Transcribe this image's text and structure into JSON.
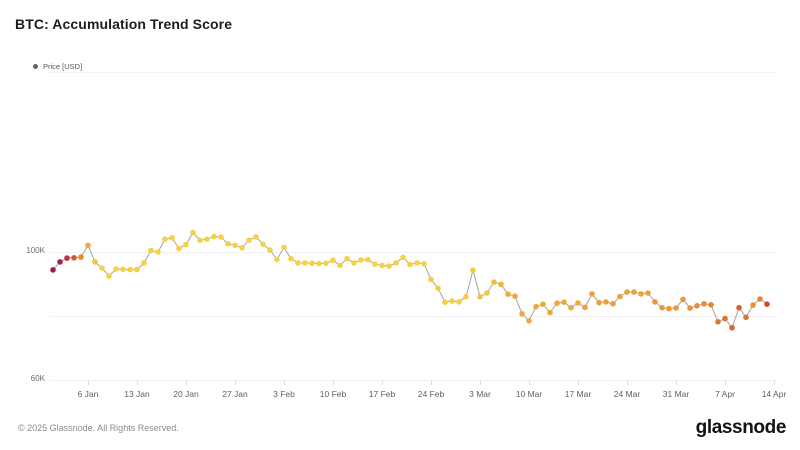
{
  "header": {
    "title": "BTC: Accumulation Trend Score"
  },
  "footer": {
    "copyright": "© 2025 Glassnode. All Rights Reserved.",
    "brand": "glassnode"
  },
  "chart_data": {
    "type": "line",
    "title": "BTC: Accumulation Trend Score",
    "legend_label": "Price [USD]",
    "legend_position": "top-left",
    "grid": "horizontal-only",
    "line_color": "#A3A3AA",
    "gridline_color": "#f1f1f4",
    "tick_color": "#dcdce0",
    "ylim": [
      60000,
      157000
    ],
    "y_axis": {
      "labels": [
        {
          "text": "100K",
          "value": 100000
        },
        {
          "text": "60K",
          "value": 60000
        }
      ],
      "gridline_values": [
        100000,
        80000,
        60000
      ]
    },
    "x_axis": {
      "ticks": [
        {
          "label": "6 Jan",
          "day": 5
        },
        {
          "label": "13 Jan",
          "day": 12
        },
        {
          "label": "20 Jan",
          "day": 19
        },
        {
          "label": "27 Jan",
          "day": 26
        },
        {
          "label": "3 Feb",
          "day": 33
        },
        {
          "label": "10 Feb",
          "day": 40
        },
        {
          "label": "17 Feb",
          "day": 47
        },
        {
          "label": "24 Feb",
          "day": 54
        },
        {
          "label": "3 Mar",
          "day": 61
        },
        {
          "label": "10 Mar",
          "day": 68
        },
        {
          "label": "17 Mar",
          "day": 75
        },
        {
          "label": "24 Mar",
          "day": 82
        },
        {
          "label": "31 Mar",
          "day": 89
        },
        {
          "label": "7 Apr",
          "day": 96
        },
        {
          "label": "14 Apr",
          "day": 103
        }
      ]
    },
    "series": [
      {
        "name": "Price [USD]",
        "color_scale": "accumulation-trend-score (dark red = high, yellow = low)",
        "points": [
          {
            "d": "1 Jan",
            "v": 94400,
            "c": "#9B1C47"
          },
          {
            "d": "2 Jan",
            "v": 96900,
            "c": "#A42348"
          },
          {
            "d": "3 Jan",
            "v": 98100,
            "c": "#C03246"
          },
          {
            "d": "4 Jan",
            "v": 98200,
            "c": "#DA5530"
          },
          {
            "d": "5 Jan",
            "v": 98400,
            "c": "#EC8834"
          },
          {
            "d": "6 Jan",
            "v": 102100,
            "c": "#F2A83C"
          },
          {
            "d": "7 Jan",
            "v": 96900,
            "c": "#F4C440"
          },
          {
            "d": "8 Jan",
            "v": 95000,
            "c": "#F5D143"
          },
          {
            "d": "9 Jan",
            "v": 92500,
            "c": "#F5D143"
          },
          {
            "d": "10 Jan",
            "v": 94700,
            "c": "#F5D143"
          },
          {
            "d": "11 Jan",
            "v": 94600,
            "c": "#F5D143"
          },
          {
            "d": "12 Jan",
            "v": 94500,
            "c": "#F5D143"
          },
          {
            "d": "13 Jan",
            "v": 94500,
            "c": "#F5D143"
          },
          {
            "d": "14 Jan",
            "v": 96600,
            "c": "#F5D143"
          },
          {
            "d": "15 Jan",
            "v": 100500,
            "c": "#F5D143"
          },
          {
            "d": "16 Jan",
            "v": 100000,
            "c": "#F5D143"
          },
          {
            "d": "17 Jan",
            "v": 104000,
            "c": "#F5D143"
          },
          {
            "d": "18 Jan",
            "v": 104400,
            "c": "#F5D143"
          },
          {
            "d": "19 Jan",
            "v": 101100,
            "c": "#F5D143"
          },
          {
            "d": "20 Jan",
            "v": 102300,
            "c": "#F5D143"
          },
          {
            "d": "21 Jan",
            "v": 106100,
            "c": "#F5D143"
          },
          {
            "d": "22 Jan",
            "v": 103700,
            "c": "#F5D143"
          },
          {
            "d": "23 Jan",
            "v": 104000,
            "c": "#F5D143"
          },
          {
            "d": "24 Jan",
            "v": 104800,
            "c": "#F5D143"
          },
          {
            "d": "25 Jan",
            "v": 104700,
            "c": "#F5D143"
          },
          {
            "d": "26 Jan",
            "v": 102600,
            "c": "#F5D143"
          },
          {
            "d": "27 Jan",
            "v": 102100,
            "c": "#F5D143"
          },
          {
            "d": "28 Jan",
            "v": 101300,
            "c": "#F5D143"
          },
          {
            "d": "29 Jan",
            "v": 103700,
            "c": "#F5D143"
          },
          {
            "d": "30 Jan",
            "v": 104700,
            "c": "#F5D143"
          },
          {
            "d": "31 Jan",
            "v": 102400,
            "c": "#F5D143"
          },
          {
            "d": "1 Feb",
            "v": 100600,
            "c": "#F5D143"
          },
          {
            "d": "2 Feb",
            "v": 97700,
            "c": "#F5D143"
          },
          {
            "d": "3 Feb",
            "v": 101400,
            "c": "#F5D143"
          },
          {
            "d": "4 Feb",
            "v": 97900,
            "c": "#F5D143"
          },
          {
            "d": "5 Feb",
            "v": 96600,
            "c": "#F5D143"
          },
          {
            "d": "6 Feb",
            "v": 96600,
            "c": "#F5D143"
          },
          {
            "d": "7 Feb",
            "v": 96500,
            "c": "#F5D143"
          },
          {
            "d": "8 Feb",
            "v": 96400,
            "c": "#F5D143"
          },
          {
            "d": "9 Feb",
            "v": 96500,
            "c": "#F5D143"
          },
          {
            "d": "10 Feb",
            "v": 97400,
            "c": "#F5D143"
          },
          {
            "d": "11 Feb",
            "v": 95800,
            "c": "#F5D143"
          },
          {
            "d": "12 Feb",
            "v": 97900,
            "c": "#F5D143"
          },
          {
            "d": "13 Feb",
            "v": 96600,
            "c": "#F5D143"
          },
          {
            "d": "14 Feb",
            "v": 97500,
            "c": "#F5D143"
          },
          {
            "d": "15 Feb",
            "v": 97600,
            "c": "#F5D143"
          },
          {
            "d": "16 Feb",
            "v": 96200,
            "c": "#F5D143"
          },
          {
            "d": "17 Feb",
            "v": 95800,
            "c": "#F5D143"
          },
          {
            "d": "18 Feb",
            "v": 95600,
            "c": "#F5D143"
          },
          {
            "d": "19 Feb",
            "v": 96600,
            "c": "#F5D143"
          },
          {
            "d": "20 Feb",
            "v": 98300,
            "c": "#F5D143"
          },
          {
            "d": "21 Feb",
            "v": 96100,
            "c": "#F5D143"
          },
          {
            "d": "22 Feb",
            "v": 96600,
            "c": "#F5D143"
          },
          {
            "d": "23 Feb",
            "v": 96300,
            "c": "#F5D143"
          },
          {
            "d": "24 Feb",
            "v": 91400,
            "c": "#F5CE42"
          },
          {
            "d": "25 Feb",
            "v": 88700,
            "c": "#F5CE42"
          },
          {
            "d": "26 Feb",
            "v": 84300,
            "c": "#F5CE42"
          },
          {
            "d": "27 Feb",
            "v": 84700,
            "c": "#F5CE42"
          },
          {
            "d": "28 Feb",
            "v": 84400,
            "c": "#F5CE42"
          },
          {
            "d": "1 Mar",
            "v": 86000,
            "c": "#F5CA41"
          },
          {
            "d": "2 Mar",
            "v": 94300,
            "c": "#F5CA41"
          },
          {
            "d": "3 Mar",
            "v": 86000,
            "c": "#F4C340"
          },
          {
            "d": "4 Mar",
            "v": 87200,
            "c": "#F4C340"
          },
          {
            "d": "5 Mar",
            "v": 90600,
            "c": "#F3BB3E"
          },
          {
            "d": "6 Mar",
            "v": 89900,
            "c": "#F2B33D"
          },
          {
            "d": "7 Mar",
            "v": 86800,
            "c": "#F1AD3C"
          },
          {
            "d": "8 Mar",
            "v": 86200,
            "c": "#F0A83B"
          },
          {
            "d": "9 Mar",
            "v": 80700,
            "c": "#F0A83B"
          },
          {
            "d": "10 Mar",
            "v": 78500,
            "c": "#F0A83B"
          },
          {
            "d": "11 Mar",
            "v": 82900,
            "c": "#F0A83B"
          },
          {
            "d": "12 Mar",
            "v": 83700,
            "c": "#F0A83B"
          },
          {
            "d": "13 Mar",
            "v": 81100,
            "c": "#F0A83B"
          },
          {
            "d": "14 Mar",
            "v": 84000,
            "c": "#F0A83B"
          },
          {
            "d": "15 Mar",
            "v": 84300,
            "c": "#F0A83B"
          },
          {
            "d": "16 Mar",
            "v": 82600,
            "c": "#F0A83B"
          },
          {
            "d": "17 Mar",
            "v": 84100,
            "c": "#F0A83B"
          },
          {
            "d": "18 Mar",
            "v": 82700,
            "c": "#EEA039"
          },
          {
            "d": "19 Mar",
            "v": 86900,
            "c": "#EEA039"
          },
          {
            "d": "20 Mar",
            "v": 84200,
            "c": "#EEA039"
          },
          {
            "d": "21 Mar",
            "v": 84400,
            "c": "#EEA039"
          },
          {
            "d": "22 Mar",
            "v": 83800,
            "c": "#EEA039"
          },
          {
            "d": "23 Mar",
            "v": 86100,
            "c": "#EEA039"
          },
          {
            "d": "24 Mar",
            "v": 87500,
            "c": "#EEA039"
          },
          {
            "d": "25 Mar",
            "v": 87500,
            "c": "#EEA039"
          },
          {
            "d": "26 Mar",
            "v": 86900,
            "c": "#EEA039"
          },
          {
            "d": "27 Mar",
            "v": 87200,
            "c": "#EEA039"
          },
          {
            "d": "28 Mar",
            "v": 84400,
            "c": "#EC9837"
          },
          {
            "d": "29 Mar",
            "v": 82600,
            "c": "#EC9837"
          },
          {
            "d": "30 Mar",
            "v": 82300,
            "c": "#EC9837"
          },
          {
            "d": "31 Mar",
            "v": 82500,
            "c": "#EC9837"
          },
          {
            "d": "1 Apr",
            "v": 85200,
            "c": "#EC9737"
          },
          {
            "d": "2 Apr",
            "v": 82500,
            "c": "#EA9036"
          },
          {
            "d": "3 Apr",
            "v": 83200,
            "c": "#EA8E35"
          },
          {
            "d": "4 Apr",
            "v": 83800,
            "c": "#E98A34"
          },
          {
            "d": "5 Apr",
            "v": 83500,
            "c": "#E78233"
          },
          {
            "d": "6 Apr",
            "v": 78200,
            "c": "#E3762F"
          },
          {
            "d": "7 Apr",
            "v": 79200,
            "c": "#E2722E"
          },
          {
            "d": "8 Apr",
            "v": 76300,
            "c": "#DD652C"
          },
          {
            "d": "9 Apr",
            "v": 82600,
            "c": "#D95D2B"
          },
          {
            "d": "10 Apr",
            "v": 79600,
            "c": "#E07230"
          },
          {
            "d": "11 Apr",
            "v": 83400,
            "c": "#E88F38"
          },
          {
            "d": "12 Apr",
            "v": 85300,
            "c": "#E8863A"
          },
          {
            "d": "13 Apr",
            "v": 83700,
            "c": "#C7502A"
          }
        ]
      }
    ]
  }
}
